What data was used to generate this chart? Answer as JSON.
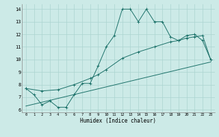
{
  "xlabel": "Humidex (Indice chaleur)",
  "bg_color": "#cceae7",
  "grid_color": "#aad4d0",
  "line_color": "#1a7068",
  "xlim": [
    -0.5,
    23.5
  ],
  "ylim": [
    5.8,
    14.4
  ],
  "xticks": [
    0,
    1,
    2,
    3,
    4,
    5,
    6,
    7,
    8,
    9,
    10,
    11,
    12,
    13,
    14,
    15,
    16,
    17,
    18,
    19,
    20,
    21,
    22,
    23
  ],
  "yticks": [
    6,
    7,
    8,
    9,
    10,
    11,
    12,
    13,
    14
  ],
  "line1_x": [
    0,
    1,
    2,
    3,
    4,
    5,
    6,
    7,
    8,
    9,
    10,
    11,
    12,
    13,
    14,
    15,
    16,
    17,
    18,
    19,
    20,
    21,
    22,
    23
  ],
  "line1_y": [
    7.7,
    7.2,
    6.4,
    6.7,
    6.2,
    6.2,
    7.2,
    8.1,
    8.1,
    9.5,
    11.0,
    11.9,
    14.0,
    14.0,
    13.0,
    14.0,
    13.0,
    13.0,
    11.8,
    11.5,
    11.9,
    12.0,
    11.5,
    10.0
  ],
  "line2_x": [
    0,
    2,
    4,
    6,
    8,
    9,
    10,
    12,
    14,
    16,
    18,
    19,
    20,
    21,
    22,
    23
  ],
  "line2_y": [
    7.7,
    7.5,
    7.6,
    8.0,
    8.5,
    8.8,
    9.2,
    10.1,
    10.6,
    11.0,
    11.4,
    11.5,
    11.7,
    11.8,
    11.9,
    10.0
  ],
  "line3_x": [
    0,
    23
  ],
  "line3_y": [
    6.3,
    9.8
  ]
}
